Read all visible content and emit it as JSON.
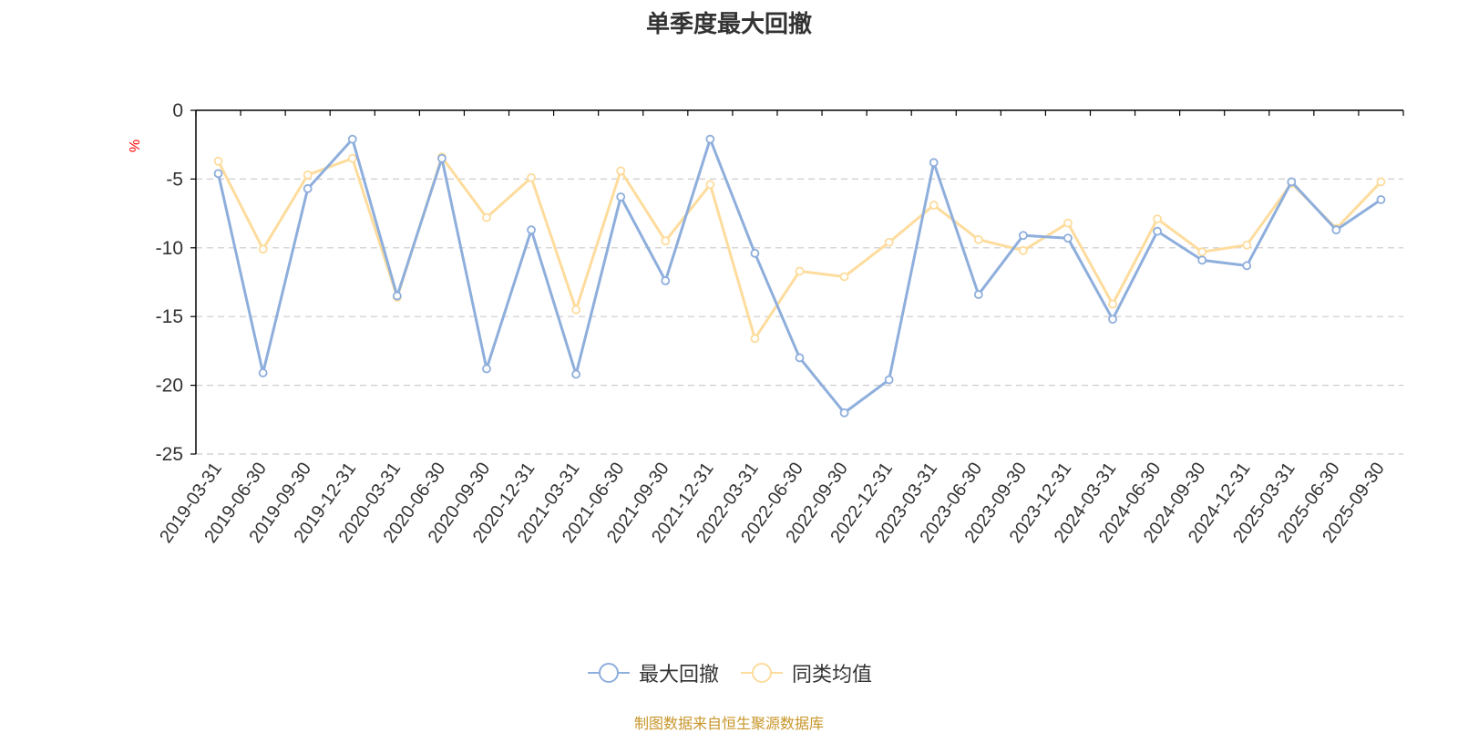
{
  "chart_data": {
    "type": "line",
    "title": "单季度最大回撤",
    "ylabel": "%",
    "ylim": [
      -25,
      0
    ],
    "yticks": [
      0,
      -5,
      -10,
      -15,
      -20,
      -25
    ],
    "grid": true,
    "legend_position": "bottom-center",
    "categories": [
      "2019-03-31",
      "2019-06-30",
      "2019-09-30",
      "2019-12-31",
      "2020-03-31",
      "2020-06-30",
      "2020-09-30",
      "2020-12-31",
      "2021-03-31",
      "2021-06-30",
      "2021-09-30",
      "2021-12-31",
      "2022-03-31",
      "2022-06-30",
      "2022-09-30",
      "2022-12-31",
      "2023-03-31",
      "2023-06-30",
      "2023-09-30",
      "2023-12-31",
      "2024-03-31",
      "2024-06-30",
      "2024-09-30",
      "2024-12-31",
      "2025-03-31",
      "2025-06-30",
      "2025-09-30"
    ],
    "series": [
      {
        "name": "最大回撤",
        "color": "#8eaedc",
        "values": [
          -4.6,
          -19.1,
          -5.7,
          -2.1,
          -13.5,
          -3.5,
          -18.8,
          -8.7,
          -19.2,
          -6.3,
          -12.4,
          -2.1,
          -10.4,
          -18.0,
          -22.0,
          -19.6,
          -3.8,
          -13.4,
          -9.1,
          -9.3,
          -15.2,
          -8.8,
          -10.9,
          -11.3,
          -5.2,
          -8.7,
          -6.5
        ]
      },
      {
        "name": "同类均值",
        "color": "#fddc9d",
        "values": [
          -3.7,
          -10.1,
          -4.7,
          -3.5,
          -13.6,
          -3.4,
          -7.8,
          -4.9,
          -14.5,
          -4.4,
          -9.5,
          -5.4,
          -16.6,
          -11.7,
          -12.1,
          -9.6,
          -6.9,
          -9.4,
          -10.2,
          -8.2,
          -14.1,
          -7.9,
          -10.3,
          -9.8,
          -5.3,
          -8.6,
          -5.2
        ]
      }
    ]
  },
  "footer": {
    "source": "制图数据来自恒生聚源数据库"
  },
  "colors": {
    "axis": "#000000",
    "grid": "#cccccc",
    "tick_text": "#333333",
    "unit_label": "#ff0000"
  }
}
